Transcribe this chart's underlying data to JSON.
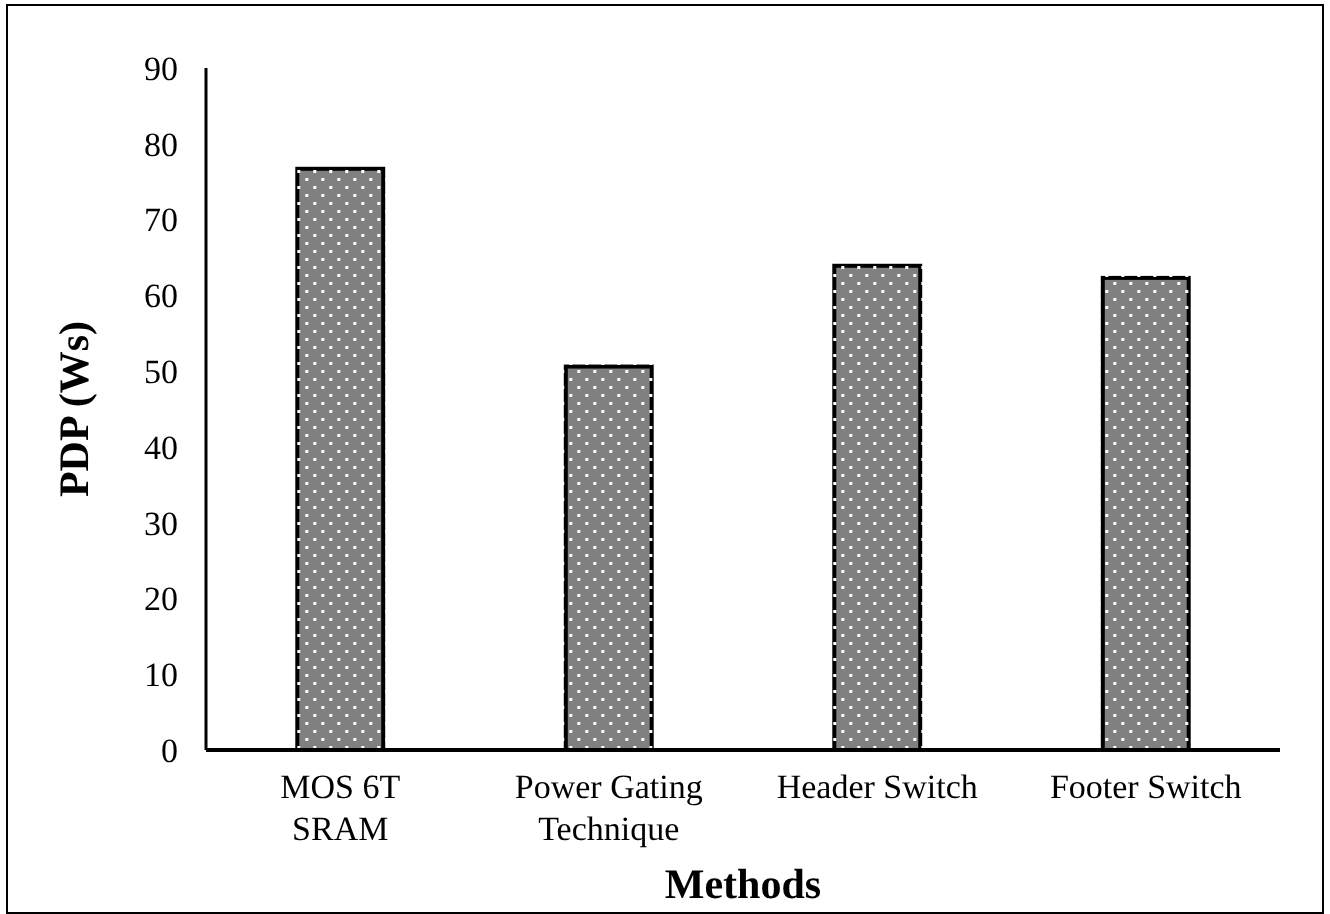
{
  "chart_data": {
    "type": "bar",
    "xlabel": "Methods",
    "ylabel": "PDP (Ws)",
    "categories": [
      "MOS 6T\nSRAM",
      "Power Gating\nTechnique",
      "Header Switch",
      "Footer Switch"
    ],
    "values": [
      76.7,
      50.6,
      63.9,
      62.3
    ],
    "color": "#808080",
    "ylim": [
      0,
      90
    ],
    "yticks": [
      0,
      10,
      20,
      30,
      40,
      50,
      60,
      70,
      80,
      90
    ],
    "grid": false
  }
}
